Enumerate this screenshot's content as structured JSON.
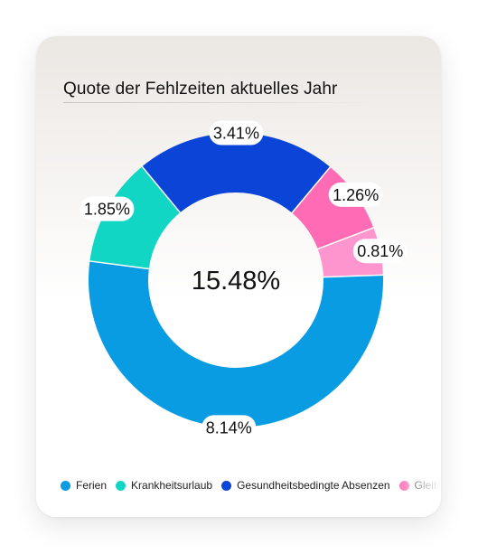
{
  "card": {
    "title": "Quote der Fehlzeiten aktuelles Jahr"
  },
  "chart_data": {
    "type": "pie",
    "center_label": "15.48%",
    "total": 15.48,
    "slices": [
      {
        "name": "Ferien",
        "value": 8.14,
        "label": "8.14%",
        "color": "#0a9ce2"
      },
      {
        "name": "Krankheitsurlaub",
        "value": 1.85,
        "label": "1.85%",
        "color": "#12d6c4"
      },
      {
        "name": "Gesundheitsbedingte Absenzen",
        "value": 3.41,
        "label": "3.41%",
        "color": "#0b45d8"
      },
      {
        "name": "Gleitzeit",
        "value": 1.26,
        "label": "1.26%",
        "color": "#ff6cb5"
      },
      {
        "name": "",
        "value": 0.81,
        "label": "0.81%",
        "color": "#ff95ce"
      }
    ],
    "legend": {
      "placement": "bottom",
      "items": [
        {
          "name": "Ferien",
          "color": "#0a9ce2"
        },
        {
          "name": "Krankheitsurlaub",
          "color": "#12d6c4"
        },
        {
          "name": "Gesundheitsbedingte Absenzen",
          "color": "#0b45d8"
        },
        {
          "name": "Gleitzeit",
          "color": "#ff6cb5"
        }
      ]
    }
  }
}
